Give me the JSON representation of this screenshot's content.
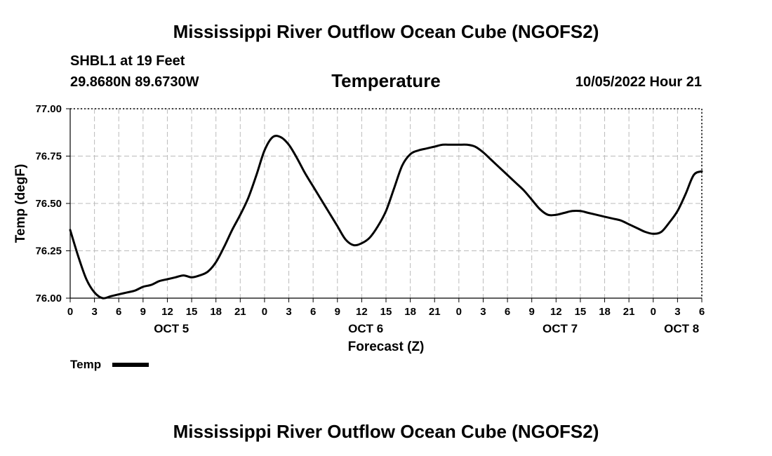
{
  "header": {
    "title": "Mississippi River Outflow Ocean Cube (NGOFS2)",
    "station": "SHBL1 at 19 Feet",
    "coords": "29.8680N  89.6730W",
    "variable": "Temperature",
    "datetime": "10/05/2022 Hour 21"
  },
  "legend": {
    "label": "Temp"
  },
  "footer": {
    "title": "Mississippi River Outflow Ocean Cube (NGOFS2)"
  },
  "chart_data": {
    "type": "line",
    "title": "Temperature",
    "xlabel": "Forecast (Z)",
    "ylabel": "Temp (degF)",
    "ylim": [
      76.0,
      77.0
    ],
    "xlim": [
      0,
      78
    ],
    "grid": true,
    "yticks": [
      "77.00",
      "76.75",
      "76.50",
      "76.25",
      "76.00"
    ],
    "xtick_labels": [
      "0",
      "3",
      "6",
      "9",
      "12",
      "15",
      "18",
      "21",
      "0",
      "3",
      "6",
      "9",
      "12",
      "15",
      "18",
      "21",
      "0",
      "3",
      "6",
      "9",
      "12",
      "15",
      "18",
      "21",
      "0",
      "3",
      "6"
    ],
    "day_labels": [
      {
        "label": "OCT 5",
        "hour": 12.5
      },
      {
        "label": "OCT 6",
        "hour": 36.5
      },
      {
        "label": "OCT 7",
        "hour": 60.5
      },
      {
        "label": "OCT 8",
        "hour": 75.5
      }
    ],
    "series": [
      {
        "name": "Temp",
        "color": "#000000",
        "x": [
          0,
          1,
          2,
          3,
          4,
          5,
          6,
          7,
          8,
          9,
          10,
          11,
          12,
          13,
          14,
          15,
          16,
          17,
          18,
          19,
          20,
          21,
          22,
          23,
          24,
          25,
          26,
          27,
          28,
          29,
          30,
          31,
          32,
          33,
          34,
          35,
          36,
          37,
          38,
          39,
          40,
          41,
          42,
          43,
          44,
          45,
          46,
          47,
          48,
          49,
          50,
          51,
          52,
          53,
          54,
          55,
          56,
          57,
          58,
          59,
          60,
          61,
          62,
          63,
          64,
          65,
          66,
          67,
          68,
          69,
          70,
          71,
          72,
          73,
          74,
          75,
          76,
          77,
          78
        ],
        "values": [
          76.36,
          76.22,
          76.1,
          76.03,
          76.0,
          76.01,
          76.02,
          76.03,
          76.04,
          76.06,
          76.07,
          76.09,
          76.1,
          76.11,
          76.12,
          76.11,
          76.12,
          76.14,
          76.19,
          76.27,
          76.36,
          76.44,
          76.53,
          76.65,
          76.78,
          76.85,
          76.85,
          76.81,
          76.74,
          76.66,
          76.59,
          76.52,
          76.45,
          76.38,
          76.31,
          76.28,
          76.29,
          76.32,
          76.38,
          76.46,
          76.58,
          76.7,
          76.76,
          76.78,
          76.79,
          76.8,
          76.81,
          76.81,
          76.81,
          76.81,
          76.8,
          76.77,
          76.73,
          76.69,
          76.65,
          76.61,
          76.57,
          76.52,
          76.47,
          76.44,
          76.44,
          76.45,
          76.46,
          76.46,
          76.45,
          76.44,
          76.43,
          76.42,
          76.41,
          76.39,
          76.37,
          76.35,
          76.34,
          76.35,
          76.4,
          76.46,
          76.55,
          76.65,
          76.67
        ]
      }
    ]
  }
}
